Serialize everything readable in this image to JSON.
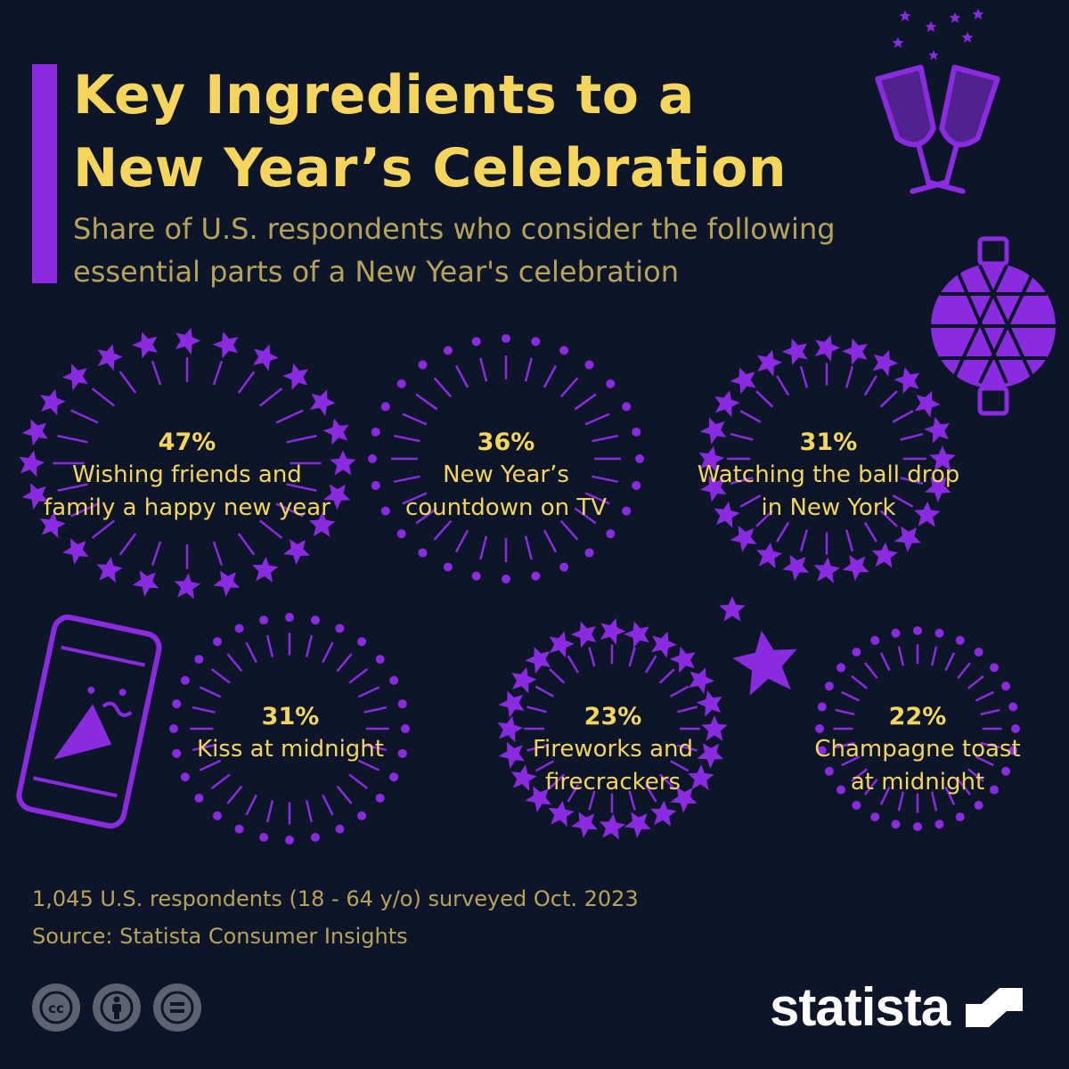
{
  "header": {
    "title_line1": "Key Ingredients to a",
    "title_line2": "New Year’s Celebration",
    "subtitle_line1": "Share of U.S. respondents who consider the following",
    "subtitle_line2": "essential parts of a New Year's celebration"
  },
  "chart_data": {
    "type": "bubble-callouts",
    "unit": "%",
    "items": [
      {
        "value": 47,
        "value_label": "47%",
        "label_lines": [
          "Wishing friends and",
          "family a happy new year"
        ],
        "burst": "stars"
      },
      {
        "value": 36,
        "value_label": "36%",
        "label_lines": [
          "New Year’s",
          "countdown on TV"
        ],
        "burst": "dots"
      },
      {
        "value": 31,
        "value_label": "31%",
        "label_lines": [
          "Watching the ball drop",
          "in New York"
        ],
        "burst": "stars"
      },
      {
        "value": 31,
        "value_label": "31%",
        "label_lines": [
          "Kiss at midnight"
        ],
        "burst": "dots"
      },
      {
        "value": 23,
        "value_label": "23%",
        "label_lines": [
          "Fireworks and",
          "firecrackers"
        ],
        "burst": "stars"
      },
      {
        "value": 22,
        "value_label": "22%",
        "label_lines": [
          "Champagne toast",
          "at midnight"
        ],
        "burst": "dots"
      }
    ]
  },
  "footer": {
    "note": "1,045 U.S. respondents (18 - 64 y/o) surveyed Oct. 2023",
    "source": "Source: Statista Consumer Insights",
    "brand": "statista"
  },
  "icons": [
    "champagne-glasses-icon",
    "disco-ball-icon",
    "party-phone-icon",
    "star-icon",
    "cc-icon",
    "attribution-icon",
    "no-derivatives-icon",
    "statista-logo-icon"
  ],
  "colors": {
    "background": "#0c1628",
    "accent": "#8a2be2",
    "title": "#f6d55c",
    "subtitle": "#b8a35a",
    "brand": "#ffffff"
  }
}
